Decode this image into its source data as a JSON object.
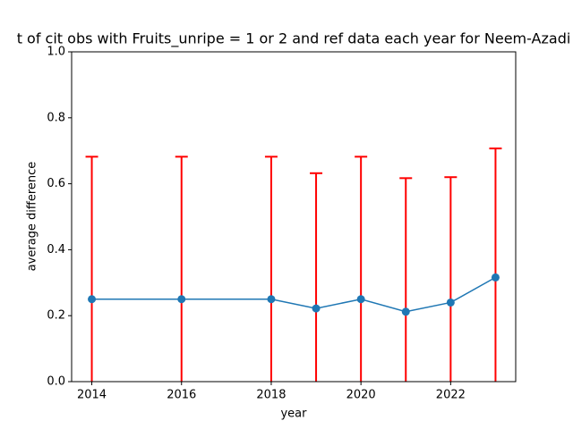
{
  "chart_data": {
    "type": "errorbar-line",
    "title": "t of cit obs with Fruits_unripe = 1 or 2 and ref data each year for Neem-Azadi",
    "x_label": "year",
    "y_label": "average difference",
    "x": [
      2014,
      2016,
      2018,
      2019,
      2020,
      2021,
      2022,
      2023
    ],
    "series": [
      {
        "color": "#1f77b4",
        "error_color": "#ff0000",
        "values": [
          0.25,
          0.25,
          0.25,
          0.222,
          0.25,
          0.212,
          0.24,
          0.316
        ],
        "errors": [
          0.432,
          0.432,
          0.432,
          0.41,
          0.432,
          0.405,
          0.38,
          0.391
        ]
      }
    ],
    "xlim": [
      2013.55,
      2023.45
    ],
    "xticks": [
      2014,
      2016,
      2018,
      2020,
      2022
    ],
    "ylim": [
      0,
      1
    ],
    "yticks": [
      {
        "value": 0,
        "label": "0.0"
      },
      {
        "value": 0.2,
        "label": "0.2"
      },
      {
        "value": 0.4,
        "label": "0.4"
      },
      {
        "value": 0.6,
        "label": "0.6"
      },
      {
        "value": 0.8,
        "label": "0.8"
      },
      {
        "value": 1,
        "label": "1.0"
      }
    ]
  }
}
